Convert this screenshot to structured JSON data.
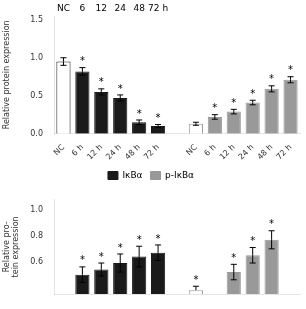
{
  "chart_data": [
    {
      "type": "bar",
      "ylabel": "Relative protein expression",
      "categories": [
        "NC",
        "6 h",
        "12 h",
        "24 h",
        "48 h",
        "72 h",
        null,
        "NC",
        "6 h",
        "12 h",
        "24 h",
        "48 h",
        "72 h"
      ],
      "header_labels": [
        "NC",
        "6",
        "12",
        "24",
        "48",
        "72 h"
      ],
      "series": [
        {
          "name": "IκBα",
          "color": "#1a1a1a",
          "colors": [
            "#ffffff",
            "#1a1a1a",
            "#1a1a1a",
            "#1a1a1a",
            "#1a1a1a",
            "#1a1a1a",
            null,
            null,
            null,
            null,
            null,
            null,
            null
          ],
          "values": [
            0.95,
            0.82,
            0.55,
            0.47,
            0.15,
            0.1,
            null,
            null,
            null,
            null,
            null,
            null,
            null
          ],
          "errors": [
            0.05,
            0.05,
            0.04,
            0.04,
            0.03,
            0.02,
            null,
            null,
            null,
            null,
            null,
            null,
            null
          ],
          "annotations": [
            null,
            "*",
            "*",
            "*",
            "*",
            "*",
            null,
            null,
            null,
            null,
            null,
            null,
            null
          ]
        },
        {
          "name": "p-IκBα",
          "color": "#999999",
          "colors": [
            null,
            null,
            null,
            null,
            null,
            null,
            null,
            "#ffffff",
            "#999999",
            "#999999",
            "#999999",
            "#999999",
            "#999999"
          ],
          "values": [
            null,
            null,
            null,
            null,
            null,
            null,
            null,
            0.13,
            0.22,
            0.29,
            0.41,
            0.59,
            0.71
          ],
          "errors": [
            null,
            null,
            null,
            null,
            null,
            null,
            null,
            0.02,
            0.03,
            0.03,
            0.03,
            0.04,
            0.04
          ],
          "annotations": [
            null,
            null,
            null,
            null,
            null,
            null,
            null,
            null,
            "*",
            "*",
            "*",
            "*",
            "*"
          ]
        }
      ],
      "ylim": [
        0,
        1.55
      ],
      "yticks": [
        {
          "value": 0.0,
          "label": "0.0"
        },
        0.5,
        {
          "value": 1.0,
          "label": "1.0"
        },
        1.5
      ],
      "grid": false,
      "legend": "bottom"
    },
    {
      "type": "bar",
      "ylabel": "Relative pro-\ntein expression",
      "categories": [
        null,
        null,
        null,
        null,
        null,
        null,
        null,
        null,
        null,
        null,
        null,
        null,
        null
      ],
      "series": [
        {
          "color": "#1a1a1a",
          "values": [
            null,
            0.5,
            0.54,
            0.59,
            0.64,
            0.67,
            null,
            null,
            null,
            null,
            null,
            null,
            null
          ],
          "errors": [
            null,
            0.06,
            0.05,
            0.07,
            0.08,
            0.06,
            null,
            null,
            null,
            null,
            null,
            null,
            null
          ],
          "annotations": [
            null,
            "*",
            "*",
            "*",
            "*",
            "*",
            null,
            null,
            null,
            null,
            null,
            null,
            null
          ]
        },
        {
          "color": "#999999",
          "colors": [
            null,
            null,
            null,
            null,
            null,
            null,
            null,
            "#ffffff",
            null,
            "#999999",
            "#999999",
            "#999999",
            null
          ],
          "values": [
            null,
            null,
            null,
            null,
            null,
            null,
            null,
            0.38,
            null,
            0.52,
            0.65,
            0.77,
            null
          ],
          "errors_low": [
            null,
            null,
            null,
            null,
            null,
            null,
            null,
            0.0,
            null,
            0.06,
            0.06,
            0.07,
            null
          ],
          "errors_high": [
            null,
            null,
            null,
            null,
            null,
            null,
            null,
            0.03,
            null,
            0.06,
            0.06,
            0.07,
            null
          ],
          "annotations": [
            null,
            null,
            null,
            null,
            null,
            null,
            null,
            "*",
            null,
            "*",
            "*",
            "*",
            null
          ]
        }
      ],
      "ylim": [
        0.35,
        1.08
      ],
      "yticks": [
        0.6,
        0.8,
        {
          "value": 1.0,
          "label": "1.0"
        }
      ],
      "grid": false,
      "legend": false,
      "tick_labels": "y"
    }
  ]
}
